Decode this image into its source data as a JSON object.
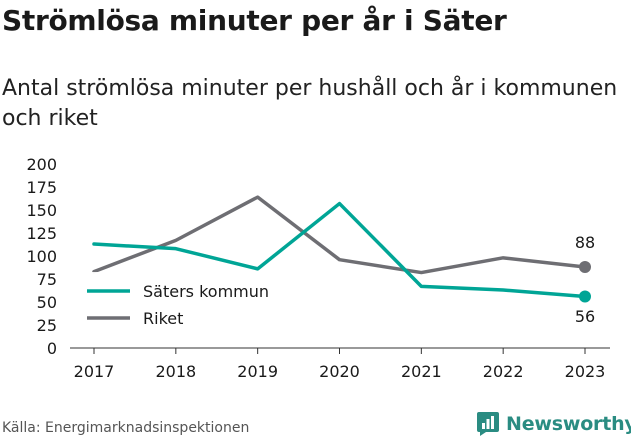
{
  "title": "Strömlösa minuter per år i Säter",
  "subtitle": "Antal strömlösa minuter per hushåll och år i kommunen och riket",
  "source": "Källa: Energimarknadsinspektionen",
  "brand": {
    "name": "Newsworthy",
    "logo_icon": "newsworthy-logo-icon"
  },
  "colors": {
    "saters": "#00a596",
    "riket": "#6e6e73",
    "grid": "#e0e0e0",
    "text": "#1a1a1a"
  },
  "chart_data": {
    "type": "line",
    "title": "Strömlösa minuter per år i Säter",
    "subtitle": "Antal strömlösa minuter per hushåll och år i kommunen och riket",
    "x": [
      "2017",
      "2018",
      "2019",
      "2020",
      "2021",
      "2022",
      "2023"
    ],
    "yticks": [
      "0",
      "25",
      "50",
      "75",
      "100",
      "125",
      "150",
      "175",
      "200"
    ],
    "ylim": [
      0,
      200
    ],
    "grid": false,
    "legend": "bottom-left",
    "series": [
      {
        "name": "Säters kommun",
        "color": "#00a596",
        "values": [
          113,
          108,
          86,
          157,
          67,
          63,
          56
        ],
        "end_label": "56"
      },
      {
        "name": "Riket",
        "color": "#6e6e73",
        "values": [
          83,
          117,
          164,
          96,
          82,
          98,
          88
        ],
        "end_label": "88"
      }
    ]
  }
}
